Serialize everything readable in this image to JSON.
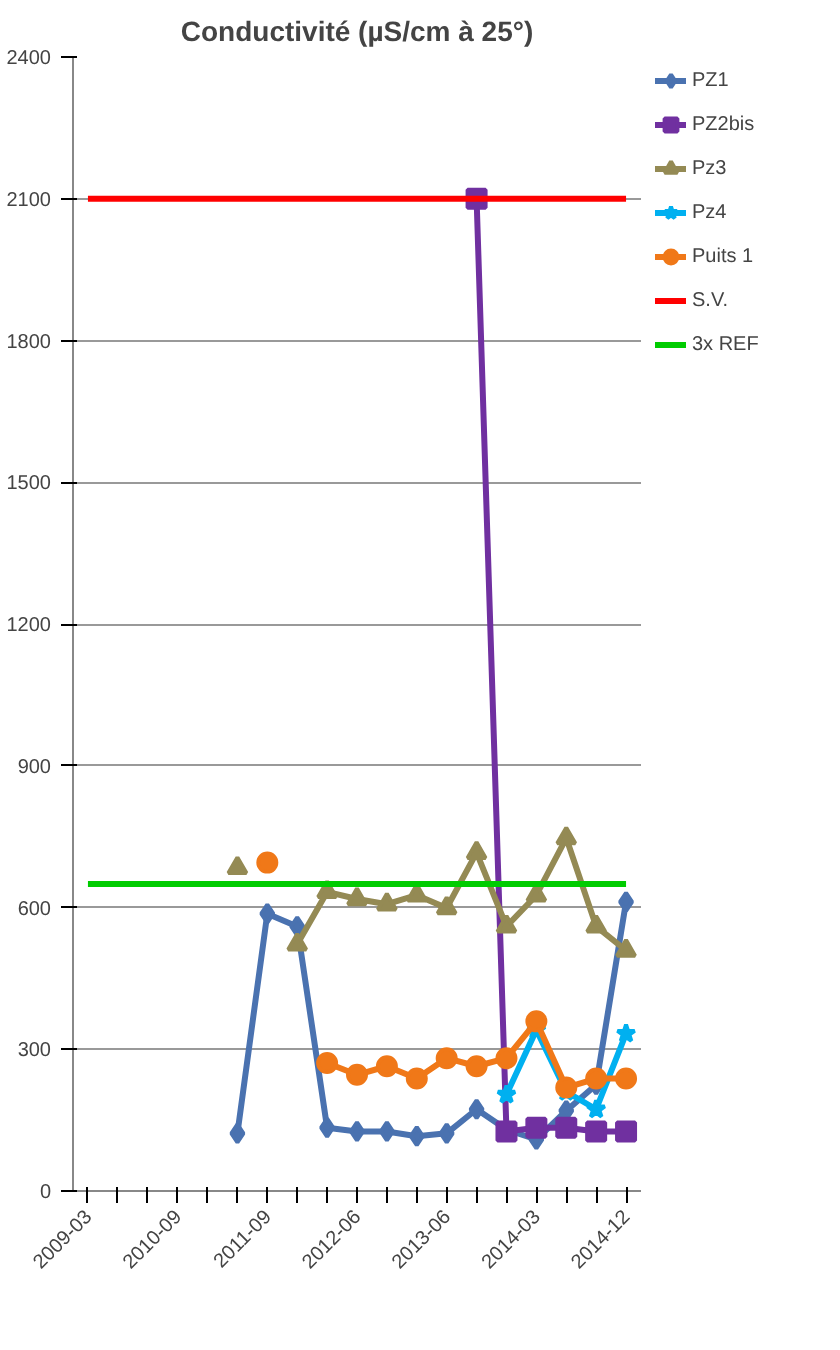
{
  "chart_data": {
    "type": "line",
    "title": "Conductivité (µS/cm à 25°)",
    "categories": [
      "2009-03",
      null,
      null,
      "2010-09",
      null,
      null,
      "2011-09",
      null,
      null,
      "2012-06",
      null,
      null,
      "2013-06",
      null,
      null,
      "2014-03",
      null,
      null,
      "2014-12"
    ],
    "series": [
      {
        "name": "PZ1",
        "color": "#4a72b0",
        "marker": "diamond",
        "values": [
          null,
          null,
          null,
          null,
          null,
          122,
          587,
          560,
          134,
          126,
          126,
          116,
          122,
          173,
          130,
          109,
          170,
          225,
          612
        ]
      },
      {
        "name": "PZ2bis",
        "color": "#7030a0",
        "marker": "square",
        "values": [
          null,
          null,
          null,
          null,
          null,
          null,
          null,
          null,
          null,
          null,
          null,
          null,
          null,
          2100,
          126,
          134,
          134,
          126,
          126
        ]
      },
      {
        "name": "Pz3",
        "color": "#948a54",
        "marker": "triangle",
        "values": [
          null,
          null,
          null,
          null,
          null,
          684,
          null,
          522,
          633,
          618,
          607,
          626,
          599,
          716,
          560,
          626,
          747,
          560,
          509
        ]
      },
      {
        "name": "Pz4",
        "color": "#00b0f0",
        "marker": "star",
        "values": [
          null,
          null,
          null,
          null,
          null,
          null,
          null,
          null,
          null,
          null,
          null,
          null,
          null,
          null,
          204,
          341,
          210,
          173,
          333
        ]
      },
      {
        "name": "Puits 1",
        "color": "#f07818",
        "marker": "circle",
        "values": [
          null,
          null,
          null,
          null,
          null,
          null,
          695,
          null,
          271,
          246,
          264,
          238,
          281,
          264,
          281,
          359,
          219,
          238,
          238
        ]
      },
      {
        "name": "S.V.",
        "color": "#ff0000",
        "marker": "none",
        "values": [
          2100,
          2100,
          2100,
          2100,
          2100,
          2100,
          2100,
          2100,
          2100,
          2100,
          2100,
          2100,
          2100,
          2100,
          2100,
          2100,
          2100,
          2100,
          2100
        ]
      },
      {
        "name": "3x REF",
        "color": "#00cc00",
        "marker": "none",
        "values": [
          650,
          650,
          650,
          650,
          650,
          650,
          650,
          650,
          650,
          650,
          650,
          650,
          650,
          650,
          650,
          650,
          650,
          650,
          650
        ]
      }
    ],
    "ylim": [
      0,
      2400
    ],
    "yticks": [
      0,
      300,
      600,
      900,
      1200,
      1500,
      1800,
      2100,
      2400
    ],
    "grid": "y",
    "legend": "right",
    "line_style": "solid"
  }
}
